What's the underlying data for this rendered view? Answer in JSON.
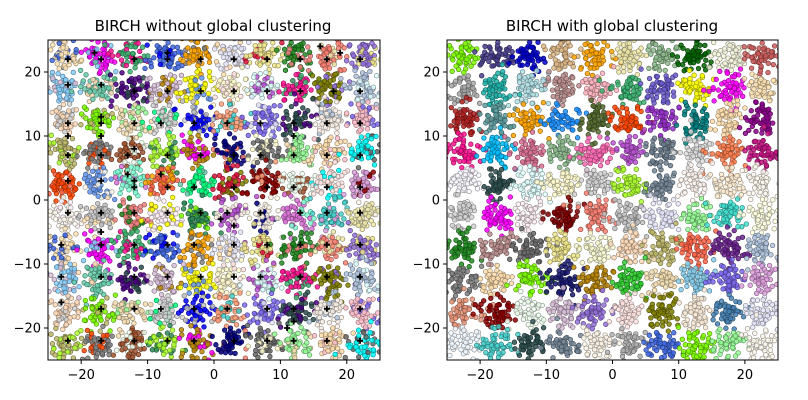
{
  "chart_data": [
    {
      "type": "scatter",
      "title": "BIRCH without global clustering",
      "xlabel": "",
      "ylabel": "",
      "xlim": [
        -25,
        25
      ],
      "ylim": [
        -25,
        25
      ],
      "xticks": [
        -20,
        -10,
        0,
        10,
        20
      ],
      "yticks": [
        -20,
        -10,
        0,
        10,
        20
      ],
      "xtick_labels": [
        "−20",
        "−10",
        "0",
        "10",
        "20"
      ],
      "ytick_labels": [
        "−20",
        "−10",
        "0",
        "10",
        "20"
      ],
      "grid": false,
      "blob_grid": {
        "x_centers": [
          -22.5,
          -17.5,
          -12.5,
          -7.5,
          -2.5,
          2.5,
          7.5,
          12.5,
          17.5,
          22.5
        ],
        "y_centers": [
          22.5,
          17.5,
          12.5,
          7.5,
          2.5,
          -2.5,
          -7.5,
          -12.5,
          -17.5,
          -22.5
        ]
      },
      "subcluster_centroids": [
        [
          -22,
          22
        ],
        [
          -17,
          22
        ],
        [
          -12,
          22
        ],
        [
          -7,
          22
        ],
        [
          -2,
          22
        ],
        [
          3,
          22
        ],
        [
          8,
          22
        ],
        [
          13,
          22
        ],
        [
          17,
          22
        ],
        [
          22,
          22
        ],
        [
          -18,
          23
        ],
        [
          -7,
          23
        ],
        [
          16,
          24
        ],
        [
          19,
          23
        ],
        [
          -22,
          18
        ],
        [
          -17,
          18
        ],
        [
          -12,
          17
        ],
        [
          -7,
          17
        ],
        [
          -2,
          17
        ],
        [
          3,
          17
        ],
        [
          8,
          17
        ],
        [
          13,
          17
        ],
        [
          18,
          17
        ],
        [
          22,
          17
        ],
        [
          -22,
          12
        ],
        [
          -17,
          12
        ],
        [
          -12,
          12
        ],
        [
          -8,
          12
        ],
        [
          -3,
          12
        ],
        [
          2,
          12
        ],
        [
          7,
          12
        ],
        [
          12,
          12
        ],
        [
          17,
          12
        ],
        [
          22,
          12
        ],
        [
          -17,
          13
        ],
        [
          -12,
          8
        ],
        [
          -22,
          10
        ],
        [
          -22,
          7
        ],
        [
          -17,
          7
        ],
        [
          -13,
          7
        ],
        [
          -7,
          7
        ],
        [
          -2,
          7
        ],
        [
          3,
          7
        ],
        [
          7,
          7
        ],
        [
          12,
          7
        ],
        [
          17,
          7
        ],
        [
          22,
          7
        ],
        [
          -17,
          10
        ],
        [
          12,
          10
        ],
        [
          -13,
          4
        ],
        [
          -12,
          3
        ],
        [
          -22,
          3
        ],
        [
          -17,
          3
        ],
        [
          -12,
          2
        ],
        [
          -7,
          2
        ],
        [
          -3,
          2
        ],
        [
          3,
          2
        ],
        [
          8,
          2
        ],
        [
          12,
          2
        ],
        [
          17,
          2
        ],
        [
          22,
          2
        ],
        [
          -22,
          -2
        ],
        [
          -17,
          -2
        ],
        [
          -12,
          -2
        ],
        [
          -7,
          -2
        ],
        [
          -2,
          -2
        ],
        [
          2,
          -2
        ],
        [
          7,
          -2
        ],
        [
          13,
          -2
        ],
        [
          17,
          -2
        ],
        [
          22,
          -2
        ],
        [
          -23,
          -7
        ],
        [
          -17,
          -7
        ],
        [
          -12,
          -7
        ],
        [
          -7,
          -7
        ],
        [
          -3,
          -7
        ],
        [
          3,
          -7
        ],
        [
          8,
          -7
        ],
        [
          13,
          -7
        ],
        [
          17,
          -7
        ],
        [
          22,
          -7
        ],
        [
          -23,
          -12
        ],
        [
          -17,
          -12
        ],
        [
          -12,
          -12
        ],
        [
          -7,
          -12
        ],
        [
          -2,
          -12
        ],
        [
          3,
          -12
        ],
        [
          7,
          -12
        ],
        [
          13,
          -12
        ],
        [
          17,
          -12
        ],
        [
          22,
          -12
        ],
        [
          -23,
          -16
        ],
        [
          -17,
          -17
        ],
        [
          -12,
          -17
        ],
        [
          -8,
          -17
        ],
        [
          -3,
          -17
        ],
        [
          2,
          -17
        ],
        [
          8,
          -17
        ],
        [
          12,
          -17
        ],
        [
          17,
          -17
        ],
        [
          22,
          -17
        ],
        [
          -22,
          -22
        ],
        [
          -17,
          -22
        ],
        [
          -12,
          -22
        ],
        [
          -7,
          -22
        ],
        [
          -3,
          -22
        ],
        [
          3,
          -22
        ],
        [
          8,
          -22
        ],
        [
          12,
          -22
        ],
        [
          17,
          -22
        ],
        [
          22,
          -22
        ],
        [
          1,
          -3
        ],
        [
          3,
          -4
        ],
        [
          -8,
          4
        ],
        [
          11,
          -20
        ],
        [
          -17,
          -5
        ],
        [
          12,
          -19
        ]
      ],
      "cluster_colors": [
        "#ffe4b5",
        "#ff00ff",
        "#3cb371",
        "#4169e1",
        "#ffa500",
        "#e6e6fa",
        "#f0e68c",
        "#228b22",
        "#fa8072",
        "#9370db",
        "#87cefa",
        "#66cdaa",
        "#4b0082",
        "#d8bfd8",
        "#ffff00",
        "#fffacd",
        "#e0ffff",
        "#ff1493",
        "#808000",
        "#b0c4de",
        "#ffdab9",
        "#7cfc00",
        "#f5deb3",
        "#d3d3d3",
        "#0000ff",
        "#ffa07a",
        "#7b68ee",
        "#2f4f4f",
        "#faf0e6",
        "#ffc0cb",
        "#bdb76b",
        "#808080",
        "#a0522d",
        "#adff2f",
        "#b8860b",
        "#000080",
        "#696969",
        "#98fb98",
        "#ffdead",
        "#00ffff",
        "#ff4500",
        "#6495ed",
        "#7fffd4",
        "#ff6347",
        "#00ff7f",
        "#dc143c",
        "#8b0000",
        "#f0fff0",
        "#ffe4e1",
        "#dda0dd",
        "#fffaf0",
        "#c0c0c0",
        "#f08080",
        "#fff0f5",
        "#2e8b57",
        "#ba55d3",
        "#fdf5e6",
        "#da70d6",
        "#48d1cc",
        "#eee8aa"
      ]
    },
    {
      "type": "scatter",
      "title": "BIRCH with global clustering",
      "xlabel": "",
      "ylabel": "",
      "xlim": [
        -25,
        25
      ],
      "ylim": [
        -25,
        25
      ],
      "xticks": [
        -20,
        -10,
        0,
        10,
        20
      ],
      "yticks": [
        -20,
        -10,
        0,
        10,
        20
      ],
      "xtick_labels": [
        "−20",
        "−10",
        "0",
        "10",
        "20"
      ],
      "ytick_labels": [
        "−20",
        "−10",
        "0",
        "10",
        "20"
      ],
      "grid": false,
      "n_clusters": 100,
      "blob_grid": {
        "x_centers": [
          -22.5,
          -17.5,
          -12.5,
          -7.5,
          -2.5,
          2.5,
          7.5,
          12.5,
          17.5,
          22.5
        ],
        "y_centers": [
          22.5,
          17.5,
          12.5,
          7.5,
          2.5,
          -2.5,
          -7.5,
          -12.5,
          -17.5,
          -22.5
        ]
      },
      "cluster_colors": [
        "#7cfc00",
        "#483d8b",
        "#0000cd",
        "#deb887",
        "#ffa500",
        "#eee8aa",
        "#8fbc8f",
        "#006400",
        "#f5f5dc",
        "#cd5c5c",
        "#a9a9a9",
        "#20b2aa",
        "#b0e0e6",
        "#bc8f8f",
        "#ffb6c1",
        "#3cb371",
        "#6a5acd",
        "#ffff00",
        "#ff00ff",
        "#ffe4b5",
        "#b22222",
        "#5f9ea0",
        "#ffa500",
        "#1e90ff",
        "#556b2f",
        "#ff4500",
        "#9932cc",
        "#008080",
        "#ffdead",
        "#8b008b",
        "#ff1493",
        "#00bfff",
        "#db7093",
        "#8fbc8f",
        "#ff69b4",
        "#ba55d3",
        "#708090",
        "#dcdcdc",
        "#ff7f50",
        "#c71585",
        "#f8f8ff",
        "#2f4f4f",
        "#e0ffff",
        "#fffacd",
        "#d3d3d3",
        "#adff2f",
        "#778899",
        "#fff5ee",
        "#ffefd5",
        "#fffaf0",
        "#d3d3d3",
        "#ff00ff",
        "#fff0f5",
        "#800000",
        "#fa8072",
        "#c0c0c0",
        "#e6e6fa",
        "#98fb98",
        "#40e0d0",
        "#ffffe0",
        "#228b22",
        "#bc8f8f",
        "#696969",
        "#f0e68c",
        "#fafad2",
        "#ffdab9",
        "#bdb76b",
        "#ff6347",
        "#6b238e",
        "#b0c4de",
        "#808080",
        "#ffdead",
        "#7fff00",
        "#191970",
        "#b8860b",
        "#32cd32",
        "#f5deb3",
        "#87ceeb",
        "#7b68ee",
        "#dda0dd",
        "#e9967a",
        "#8b0000",
        "#f0fff0",
        "#d8bfd8",
        "#9370db",
        "#ffe4e1",
        "#808000",
        "#faebd7",
        "#4682b4",
        "#e6e6fa",
        "#f0f8ff",
        "#48d1cc",
        "#2f4f4f",
        "#778899",
        "#fdf5e6",
        "#b0b0b0",
        "#4169e1",
        "#7fff00",
        "#98fb98",
        "#fffaf0"
      ]
    }
  ]
}
